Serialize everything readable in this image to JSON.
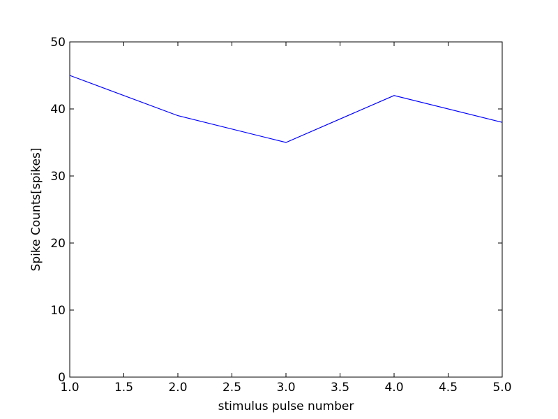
{
  "chart_data": {
    "type": "line",
    "title": "",
    "xlabel": "stimulus pulse number",
    "ylabel": "Spike Counts[spikes]",
    "xlim": [
      1.0,
      5.0
    ],
    "ylim": [
      0,
      50
    ],
    "xticks": [
      "1.0",
      "1.5",
      "2.0",
      "2.5",
      "3.0",
      "3.5",
      "4.0",
      "4.5",
      "5.0"
    ],
    "yticks": [
      "0",
      "10",
      "20",
      "30",
      "40",
      "50"
    ],
    "grid": false,
    "series": [
      {
        "color": "#0000ff",
        "x": [
          1,
          2,
          3,
          4,
          5
        ],
        "y": [
          45,
          39,
          35,
          42,
          38
        ]
      }
    ]
  }
}
